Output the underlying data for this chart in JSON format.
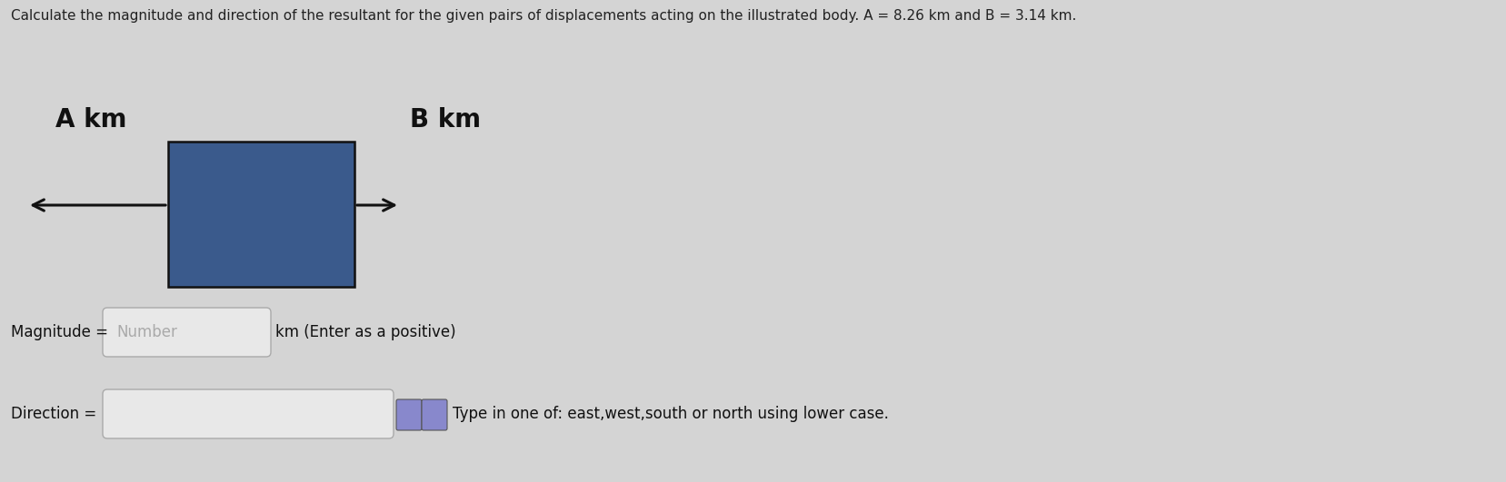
{
  "title": "Calculate the magnitude and direction of the resultant for the given pairs of displacements acting on the illustrated body. A = 8.26 km and B = 3.14 km.",
  "title_fontsize": 11,
  "title_color": "#222222",
  "bg_color": "#d4d4d4",
  "box_color": "#3a5a8c",
  "box_edge_color": "#111111",
  "arrow_left_label": "A km",
  "arrow_right_label": "B km",
  "label_fontsize": 20,
  "label_fontweight": "bold",
  "magnitude_label": "Magnitude = ",
  "magnitude_placeholder": "Number",
  "magnitude_unit": "km (Enter as a positive)",
  "direction_label": "Direction = ",
  "direction_hint": "Type in one of: east,west,south or north using lower case.",
  "input_box_color": "#e8e8e8",
  "input_box_edge": "#aaaaaa",
  "text_fontsize": 12,
  "arrow_linewidth": 2.2,
  "arrow_color": "#111111",
  "fig_width": 16.58,
  "fig_height": 5.31,
  "dpi": 100
}
